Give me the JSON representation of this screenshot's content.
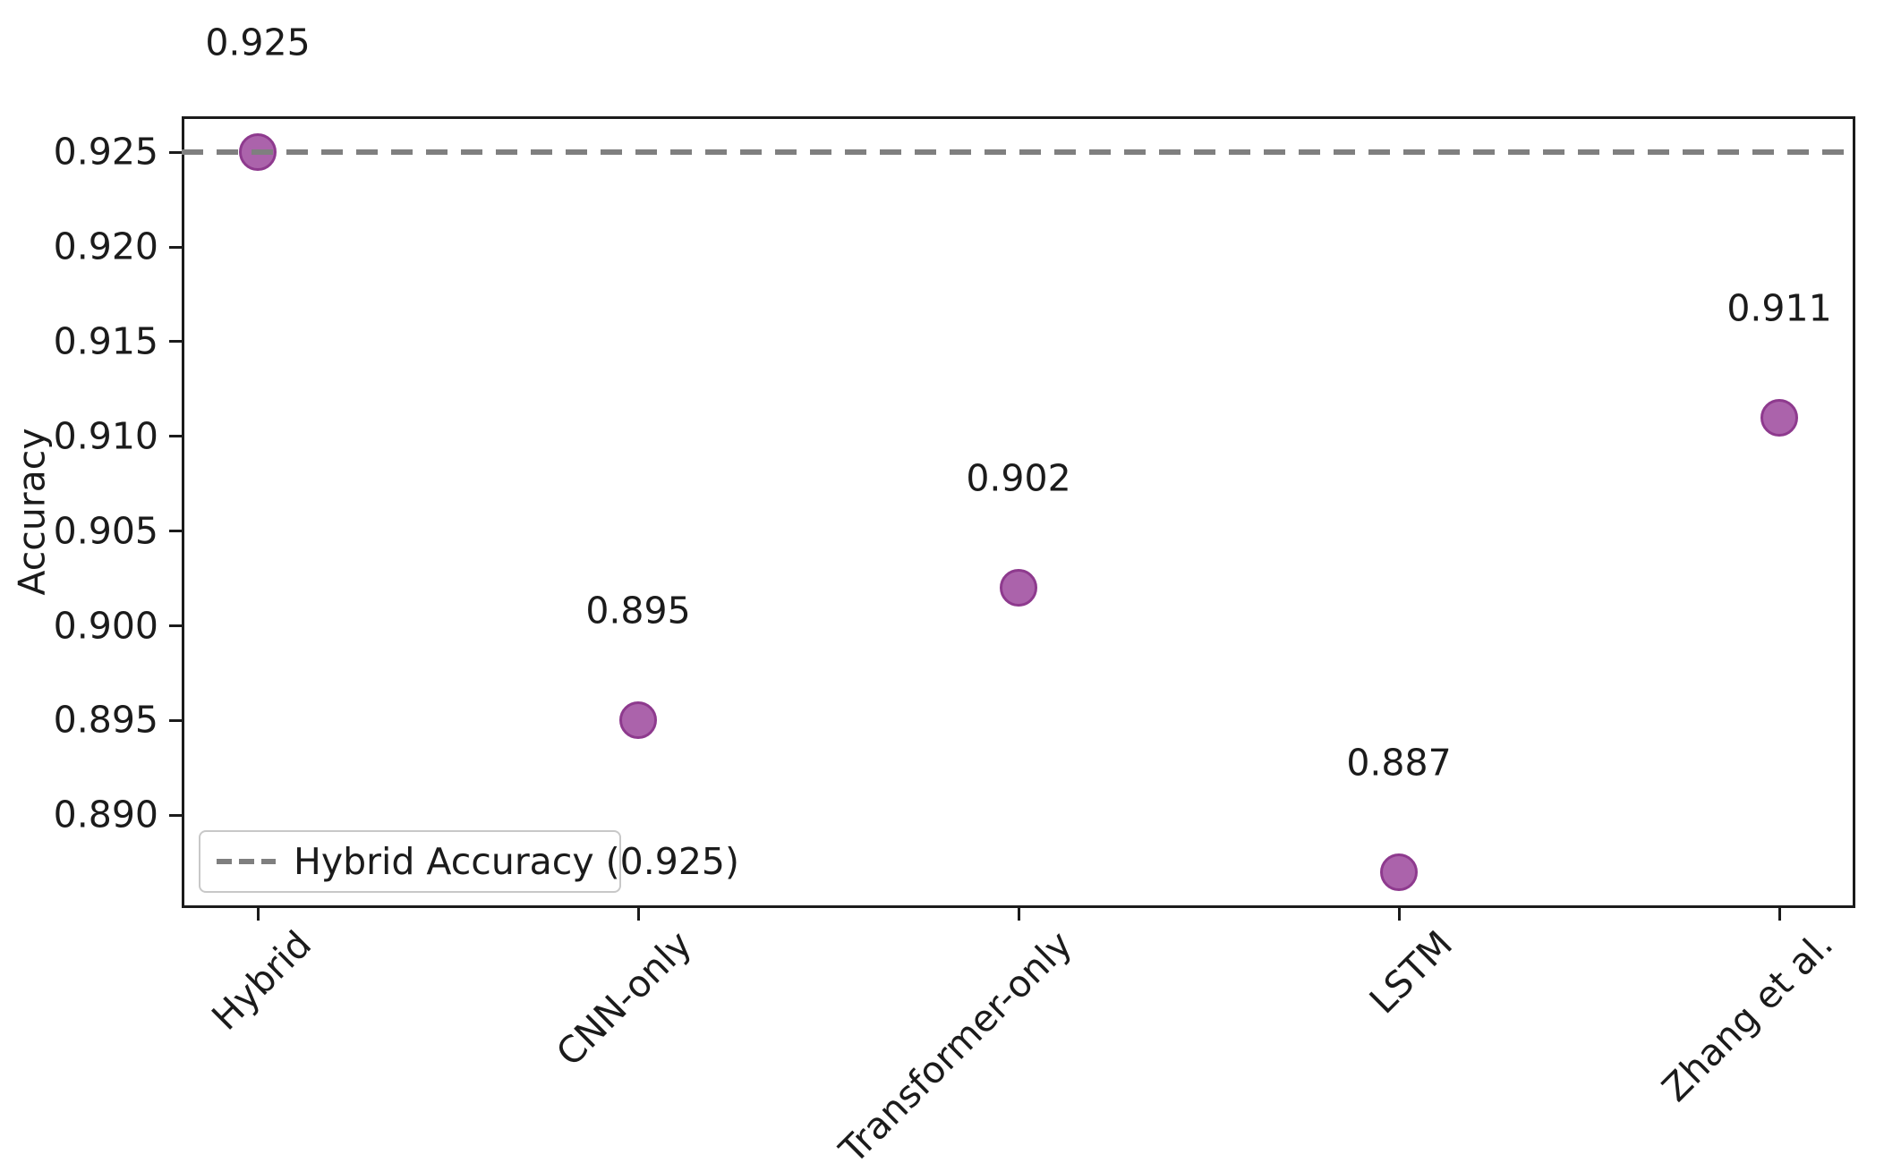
{
  "chart_data": {
    "type": "scatter",
    "title": "",
    "xlabel": "",
    "ylabel": "Accuracy",
    "categories": [
      "Hybrid",
      "CNN-only",
      "Transformer-only",
      "LSTM",
      "Zhang et al."
    ],
    "values": [
      0.925,
      0.895,
      0.902,
      0.887,
      0.911
    ],
    "point_labels": [
      "0.925",
      "0.895",
      "0.902",
      "0.887",
      "0.911"
    ],
    "ylim": [
      0.8851,
      0.9269
    ],
    "xlim": [
      -0.2,
      4.2
    ],
    "yticks": [
      0.89,
      0.895,
      0.9,
      0.905,
      0.91,
      0.915,
      0.92,
      0.925
    ],
    "ytick_labels": [
      "0.890",
      "0.895",
      "0.900",
      "0.905",
      "0.910",
      "0.915",
      "0.920",
      "0.925"
    ],
    "grid": false,
    "reference_line": {
      "y": 0.925,
      "style": "dashed",
      "color": "#7f7f7f",
      "label": "Hybrid Accuracy (0.925)"
    },
    "legend": {
      "position": "lower left",
      "entries": [
        {
          "label": "Hybrid Accuracy (0.925)",
          "sample": "dashed-gray-line"
        }
      ]
    },
    "marker": {
      "shape": "circle",
      "fill_color": "#ab63ab",
      "edge_color": "#8e3a8e"
    },
    "colors": {
      "axis": "#1b1b1b",
      "text": "#1b1b1b",
      "background": "#ffffff",
      "legend_border": "#c8c8c8"
    }
  }
}
